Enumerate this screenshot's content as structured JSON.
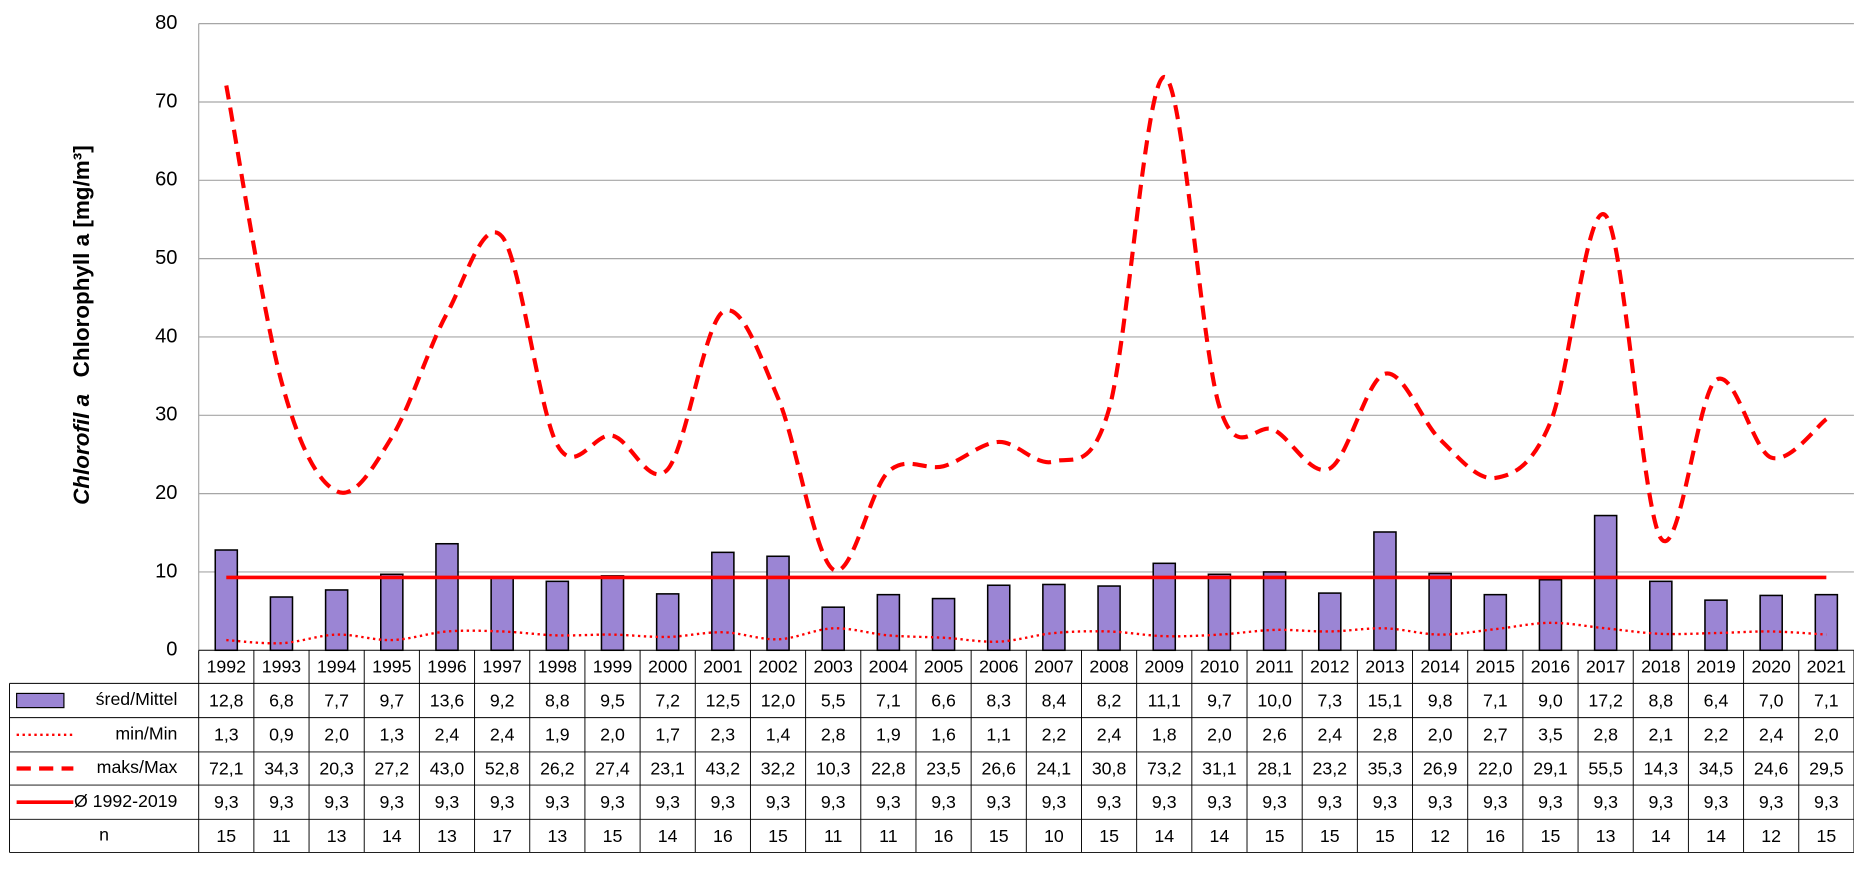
{
  "chart_data": {
    "type": "bar-line-table",
    "y_label": [
      "Chlorofil a",
      "Chlorophyll a [mg/m³]"
    ],
    "ylim": [
      0,
      80
    ],
    "yticks": [
      0,
      10,
      20,
      30,
      40,
      50,
      60,
      70,
      80
    ],
    "grid": true,
    "categories": [
      "1992",
      "1993",
      "1994",
      "1995",
      "1996",
      "1997",
      "1998",
      "1999",
      "2000",
      "2001",
      "2002",
      "2003",
      "2004",
      "2005",
      "2006",
      "2007",
      "2008",
      "2009",
      "2010",
      "2011",
      "2012",
      "2013",
      "2014",
      "2015",
      "2016",
      "2017",
      "2018",
      "2019",
      "2020",
      "2021"
    ],
    "series": [
      {
        "name": "śred/Mittel",
        "style": "bar",
        "color": "#9b85d4",
        "values": [
          12.8,
          6.8,
          7.7,
          9.7,
          13.6,
          9.2,
          8.8,
          9.5,
          7.2,
          12.5,
          12.0,
          5.5,
          7.1,
          6.6,
          8.3,
          8.4,
          8.2,
          11.1,
          9.7,
          10.0,
          7.3,
          15.1,
          9.8,
          7.1,
          9.0,
          17.2,
          8.8,
          6.4,
          7.0,
          7.1
        ],
        "value_labels": [
          "12,8",
          "6,8",
          "7,7",
          "9,7",
          "13,6",
          "9,2",
          "8,8",
          "9,5",
          "7,2",
          "12,5",
          "12,0",
          "5,5",
          "7,1",
          "6,6",
          "8,3",
          "8,4",
          "8,2",
          "11,1",
          "9,7",
          "10,0",
          "7,3",
          "15,1",
          "9,8",
          "7,1",
          "9,0",
          "17,2",
          "8,8",
          "6,4",
          "7,0",
          "7,1"
        ]
      },
      {
        "name": "min/Min",
        "style": "dotted",
        "color": "#ff0000",
        "values": [
          1.3,
          0.9,
          2.0,
          1.3,
          2.4,
          2.4,
          1.9,
          2.0,
          1.7,
          2.3,
          1.4,
          2.8,
          1.9,
          1.6,
          1.1,
          2.2,
          2.4,
          1.8,
          2.0,
          2.6,
          2.4,
          2.8,
          2.0,
          2.7,
          3.5,
          2.8,
          2.1,
          2.2,
          2.4,
          2.0
        ],
        "value_labels": [
          "1,3",
          "0,9",
          "2,0",
          "1,3",
          "2,4",
          "2,4",
          "1,9",
          "2,0",
          "1,7",
          "2,3",
          "1,4",
          "2,8",
          "1,9",
          "1,6",
          "1,1",
          "2,2",
          "2,4",
          "1,8",
          "2,0",
          "2,6",
          "2,4",
          "2,8",
          "2,0",
          "2,7",
          "3,5",
          "2,8",
          "2,1",
          "2,2",
          "2,4",
          "2,0"
        ]
      },
      {
        "name": "maks/Max",
        "style": "dashed",
        "color": "#ff0000",
        "values": [
          72.1,
          34.3,
          20.3,
          27.2,
          43.0,
          52.8,
          26.2,
          27.4,
          23.1,
          43.2,
          32.2,
          10.3,
          22.8,
          23.5,
          26.6,
          24.1,
          30.8,
          73.2,
          31.1,
          28.1,
          23.2,
          35.3,
          26.9,
          22.0,
          29.1,
          55.5,
          14.3,
          34.5,
          24.6,
          29.5
        ],
        "value_labels": [
          "72,1",
          "34,3",
          "20,3",
          "27,2",
          "43,0",
          "52,8",
          "26,2",
          "27,4",
          "23,1",
          "43,2",
          "32,2",
          "10,3",
          "22,8",
          "23,5",
          "26,6",
          "24,1",
          "30,8",
          "73,2",
          "31,1",
          "28,1",
          "23,2",
          "35,3",
          "26,9",
          "22,0",
          "29,1",
          "55,5",
          "14,3",
          "34,5",
          "24,6",
          "29,5"
        ]
      },
      {
        "name": "Ø 1992-2019",
        "style": "solid",
        "color": "#ff0000",
        "values": [
          9.3,
          9.3,
          9.3,
          9.3,
          9.3,
          9.3,
          9.3,
          9.3,
          9.3,
          9.3,
          9.3,
          9.3,
          9.3,
          9.3,
          9.3,
          9.3,
          9.3,
          9.3,
          9.3,
          9.3,
          9.3,
          9.3,
          9.3,
          9.3,
          9.3,
          9.3,
          9.3,
          9.3,
          9.3,
          9.3
        ],
        "value_labels": [
          "9,3",
          "9,3",
          "9,3",
          "9,3",
          "9,3",
          "9,3",
          "9,3",
          "9,3",
          "9,3",
          "9,3",
          "9,3",
          "9,3",
          "9,3",
          "9,3",
          "9,3",
          "9,3",
          "9,3",
          "9,3",
          "9,3",
          "9,3",
          "9,3",
          "9,3",
          "9,3",
          "9,3",
          "9,3",
          "9,3",
          "9,3",
          "9,3",
          "9,3",
          "9,3"
        ]
      },
      {
        "name": "n",
        "values": [
          15,
          11,
          13,
          14,
          13,
          17,
          13,
          15,
          14,
          16,
          15,
          11,
          11,
          16,
          15,
          10,
          15,
          14,
          14,
          15,
          15,
          15,
          12,
          16,
          15,
          13,
          14,
          14,
          12,
          15
        ]
      }
    ]
  }
}
